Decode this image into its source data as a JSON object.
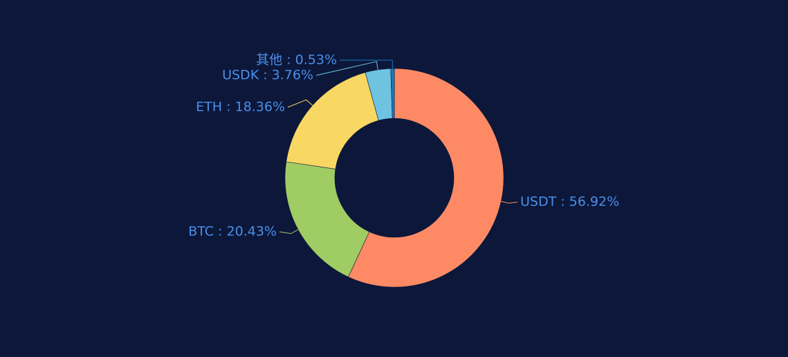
{
  "chart_data": {
    "type": "donut",
    "values": [
      56.92,
      20.43,
      18.36,
      3.76,
      0.53
    ],
    "value_labels": [
      "USDT : 56.92%",
      "BTC : 20.43%",
      "ETH : 18.36%",
      "USDK : 3.76%",
      "其他 : 0.53%"
    ],
    "colors": [
      "#fd8a64",
      "#a0cc64",
      "#f8d862",
      "#6ec3e0",
      "#1b7bc0"
    ]
  }
}
